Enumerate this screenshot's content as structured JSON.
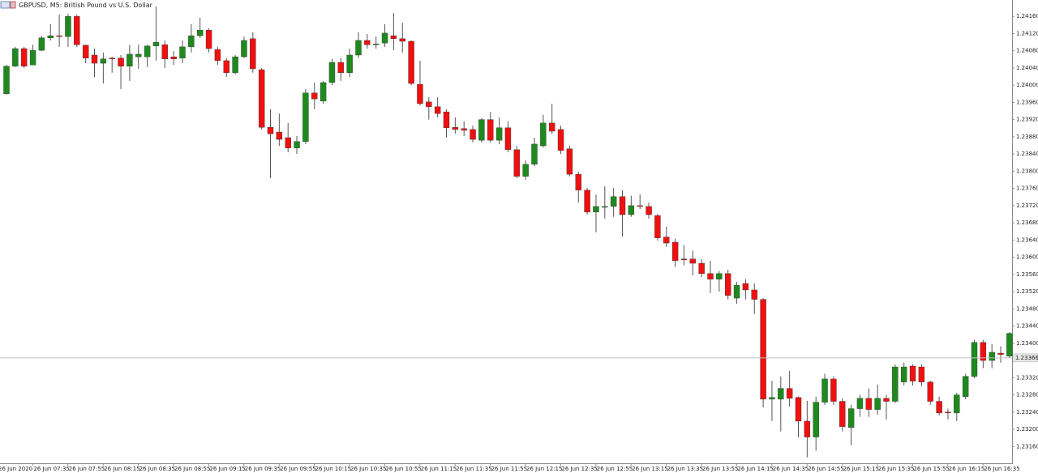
{
  "chart_data": {
    "type": "candlestick",
    "title": "GBPUSD, M5:  British Pound vs U.S. Dollar",
    "categories": [
      "26 Jun 2020",
      null,
      null,
      null,
      "26 Jun 07:35",
      null,
      null,
      null,
      "26 Jun 07:55",
      null,
      null,
      null,
      "26 Jun 08:15",
      null,
      null,
      null,
      "26 Jun 08:35",
      null,
      null,
      null,
      "26 Jun 08:55",
      null,
      null,
      null,
      "26 Jun 09:15",
      null,
      null,
      null,
      "26 Jun 09:35",
      null,
      null,
      null,
      "26 Jun 09:55",
      null,
      null,
      null,
      "26 Jun 10:15",
      null,
      null,
      null,
      "26 Jun 10:35",
      null,
      null,
      null,
      "26 Jun 10:55",
      null,
      null,
      null,
      "26 Jun 11:15",
      null,
      null,
      null,
      "26 Jun 11:35",
      null,
      null,
      null,
      "26 Jun 11:55",
      null,
      null,
      null,
      "26 Jun 12:15",
      null,
      null,
      null,
      "26 Jun 12:35",
      null,
      null,
      null,
      "26 Jun 12:55",
      null,
      null,
      null,
      "26 Jun 13:15",
      null,
      null,
      null,
      "26 Jun 13:35",
      null,
      null,
      null,
      "26 Jun 13:55",
      null,
      null,
      null,
      "26 Jun 14:15",
      null,
      null,
      null,
      "26 Jun 14:35",
      null,
      null,
      null,
      "26 Jun 14:55",
      null,
      null,
      null,
      "26 Jun 15:15",
      null,
      null,
      null,
      "26 Jun 15:35",
      null,
      null,
      null,
      "26 Jun 15:55",
      null,
      null,
      null,
      "26 Jun 16:15",
      null,
      null,
      null,
      "26 Jun 16:35",
      null,
      null
    ],
    "open": [
      1.2398,
      1.24044,
      1.24085,
      1.24047,
      1.24081,
      1.2411,
      1.24115,
      1.24113,
      1.2416,
      1.24093,
      1.2407,
      1.24051,
      1.24063,
      1.24063,
      1.24044,
      1.24066,
      1.24066,
      1.24091,
      1.24094,
      1.24066,
      1.24063,
      1.24089,
      1.24115,
      1.24128,
      1.24083,
      1.24057,
      1.24029,
      1.24066,
      1.24108,
      1.24036,
      1.23902,
      1.23891,
      1.23878,
      1.23854,
      1.23869,
      1.23982,
      1.23963,
      1.24006,
      1.24053,
      1.24029,
      1.2407,
      1.24104,
      1.24094,
      1.24098,
      1.24115,
      1.24108,
      1.24102,
      1.24002,
      1.23961,
      1.2395,
      1.23938,
      1.23902,
      1.23899,
      1.23897,
      1.23872,
      1.2392,
      1.23872,
      1.23901,
      1.2385,
      1.23788,
      1.23816,
      1.23859,
      1.23912,
      1.23897,
      1.23852,
      1.23793,
      1.23756,
      1.23705,
      1.23716,
      1.23718,
      1.23741,
      1.23699,
      1.2372,
      1.23718,
      1.23697,
      1.23647,
      1.23635,
      1.23596,
      1.23596,
      1.23586,
      1.23562,
      1.23549,
      1.23562,
      1.23505,
      1.23539,
      1.23524,
      1.23502,
      1.2327,
      1.2327,
      1.23295,
      1.23274,
      1.23219,
      1.23182,
      1.23263,
      1.23317,
      1.23265,
      1.23204,
      1.23248,
      1.23272,
      1.23246,
      1.23272,
      1.23265,
      1.2331,
      1.23347,
      1.23345,
      1.2331,
      1.23265,
      1.2324,
      1.23238,
      1.23276,
      1.23323,
      1.23402,
      1.2336,
      1.23377,
      1.2337
    ],
    "high": [
      1.24047,
      1.24089,
      1.24089,
      1.24094,
      1.24115,
      1.24142,
      1.24164,
      1.24166,
      1.24164,
      1.24094,
      1.24085,
      1.24076,
      1.24066,
      1.2407,
      1.24094,
      1.24094,
      1.24094,
      1.24183,
      1.24104,
      1.24079,
      1.24104,
      1.24142,
      1.24157,
      1.24132,
      1.24089,
      1.24063,
      1.2407,
      1.24113,
      1.24123,
      1.2404,
      1.23944,
      1.23934,
      1.23912,
      1.23882,
      1.23991,
      1.24006,
      1.2401,
      1.24061,
      1.24063,
      1.24085,
      1.24123,
      1.24119,
      1.24113,
      1.24142,
      1.24168,
      1.24145,
      1.24104,
      1.24057,
      1.23972,
      1.23972,
      1.23944,
      1.23925,
      1.23916,
      1.23906,
      1.23923,
      1.23938,
      1.23925,
      1.23916,
      1.23859,
      1.23825,
      1.23878,
      1.23931,
      1.23957,
      1.23906,
      1.23859,
      1.23799,
      1.23761,
      1.23746,
      1.23765,
      1.23761,
      1.23756,
      1.23743,
      1.23746,
      1.23727,
      1.23701,
      1.23671,
      1.23643,
      1.23628,
      1.23615,
      1.23596,
      1.23592,
      1.23568,
      1.23571,
      1.23543,
      1.23549,
      1.23539,
      1.23505,
      1.23313,
      1.23323,
      1.23336,
      1.23276,
      1.23266,
      1.23276,
      1.23329,
      1.23323,
      1.23272,
      1.23257,
      1.2328,
      1.23295,
      1.23304,
      1.2328,
      1.23351,
      1.23355,
      1.23351,
      1.23351,
      1.23313,
      1.23276,
      1.23248,
      1.23285,
      1.23329,
      1.23408,
      1.23408,
      1.23398,
      1.23393,
      1.23426
    ],
    "low": [
      1.23978,
      1.24042,
      1.2404,
      1.24047,
      1.24079,
      1.24104,
      1.24089,
      1.24089,
      1.24089,
      1.24051,
      1.24019,
      1.24004,
      1.24029,
      1.23991,
      1.2401,
      1.24038,
      1.24042,
      1.24057,
      1.2404,
      1.24047,
      1.24051,
      1.24076,
      1.2411,
      1.24076,
      1.24047,
      1.24019,
      1.24025,
      1.24063,
      1.24029,
      1.23897,
      1.23784,
      1.23859,
      1.23844,
      1.2384,
      1.23863,
      1.23944,
      1.23957,
      1.24,
      1.2401,
      1.24019,
      1.24063,
      1.24085,
      1.24085,
      1.24089,
      1.24081,
      1.24076,
      1.24,
      1.23953,
      1.2392,
      1.23925,
      1.23878,
      1.23887,
      1.23882,
      1.23867,
      1.23867,
      1.23867,
      1.23863,
      1.23844,
      1.23784,
      1.2378,
      1.23812,
      1.23855,
      1.23887,
      1.2384,
      1.23788,
      1.23727,
      1.23699,
      1.23658,
      1.2369,
      1.23694,
      1.23648,
      1.23694,
      1.23712,
      1.2369,
      1.23639,
      1.23624,
      1.23577,
      1.23581,
      1.23558,
      1.23554,
      1.23517,
      1.2352,
      1.23502,
      1.23492,
      1.23502,
      1.23468,
      1.23251,
      1.23219,
      1.23195,
      1.23253,
      1.23182,
      1.23135,
      1.2315,
      1.23257,
      1.23257,
      1.23195,
      1.23163,
      1.23229,
      1.23229,
      1.23234,
      1.23223,
      1.23261,
      1.23302,
      1.23302,
      1.233,
      1.23257,
      1.23232,
      1.23223,
      1.23219,
      1.2327,
      1.23319,
      1.23342,
      1.23342,
      1.23355,
      1.23366
    ],
    "close": [
      1.24044,
      1.24085,
      1.24044,
      1.24081,
      1.2411,
      1.24115,
      1.24113,
      1.2416,
      1.24094,
      1.24063,
      1.24051,
      1.24061,
      1.24061,
      1.24044,
      1.24072,
      1.24072,
      1.24091,
      1.241,
      1.24061,
      1.24061,
      1.24089,
      1.24115,
      1.24128,
      1.24085,
      1.24057,
      1.24029,
      1.24066,
      1.24104,
      1.24038,
      1.23902,
      1.23887,
      1.23874,
      1.23854,
      1.23869,
      1.23982,
      1.23968,
      1.24006,
      1.24053,
      1.24029,
      1.2407,
      1.24104,
      1.24094,
      1.24096,
      1.24121,
      1.24108,
      1.24102,
      1.24004,
      1.23957,
      1.2395,
      1.23934,
      1.23901,
      1.23897,
      1.23895,
      1.23874,
      1.2392,
      1.23872,
      1.23901,
      1.2385,
      1.23788,
      1.23816,
      1.23863,
      1.23912,
      1.23893,
      1.23848,
      1.23793,
      1.23756,
      1.23705,
      1.23718,
      1.23718,
      1.23741,
      1.23699,
      1.2372,
      1.23718,
      1.23699,
      1.23645,
      1.23633,
      1.23592,
      1.23594,
      1.23586,
      1.23562,
      1.23549,
      1.23562,
      1.23511,
      1.23535,
      1.23524,
      1.23502,
      1.2327,
      1.23274,
      1.23295,
      1.23272,
      1.23219,
      1.23182,
      1.23263,
      1.23317,
      1.23265,
      1.23206,
      1.23248,
      1.23272,
      1.23246,
      1.23272,
      1.23265,
      1.23345,
      1.23345,
      1.23312,
      1.2331,
      1.23265,
      1.23238,
      1.23238,
      1.2328,
      1.23323,
      1.23402,
      1.2336,
      1.23379,
      1.23374,
      1.23423
    ],
    "up_color": "#1e8a1e",
    "down_color": "#f01010",
    "wick_color": "#555555",
    "ylim": [
      1.23121,
      1.24198
    ],
    "yticks": [
      {
        "value": 1.2416,
        "label": "1.24160"
      },
      {
        "value": 1.2412,
        "label": "1.24120"
      },
      {
        "value": 1.2408,
        "label": "1.24080"
      },
      {
        "value": 1.2404,
        "label": "1.24040"
      },
      {
        "value": 1.24,
        "label": "1.24000"
      },
      {
        "value": 1.2396,
        "label": "1.23960"
      },
      {
        "value": 1.2392,
        "label": "1.23920"
      },
      {
        "value": 1.2388,
        "label": "1.23880"
      },
      {
        "value": 1.2384,
        "label": "1.23840"
      },
      {
        "value": 1.238,
        "label": "1.23800"
      },
      {
        "value": 1.2376,
        "label": "1.23760"
      },
      {
        "value": 1.2372,
        "label": "1.23720"
      },
      {
        "value": 1.2368,
        "label": "1.23680"
      },
      {
        "value": 1.2364,
        "label": "1.23640"
      },
      {
        "value": 1.236,
        "label": "1.23600"
      },
      {
        "value": 1.2356,
        "label": "1.23560"
      },
      {
        "value": 1.2352,
        "label": "1.23520"
      },
      {
        "value": 1.2348,
        "label": "1.23480"
      },
      {
        "value": 1.2344,
        "label": "1.23440"
      },
      {
        "value": 1.234,
        "label": "1.23400"
      },
      {
        "value": 1.2332,
        "label": "1.23320"
      },
      {
        "value": 1.2328,
        "label": "1.23280"
      },
      {
        "value": 1.2324,
        "label": "1.23240"
      },
      {
        "value": 1.232,
        "label": "1.23200"
      },
      {
        "value": 1.2316,
        "label": "1.23160"
      }
    ],
    "price_line": {
      "value": 1.23366,
      "label": "1.23366"
    }
  }
}
